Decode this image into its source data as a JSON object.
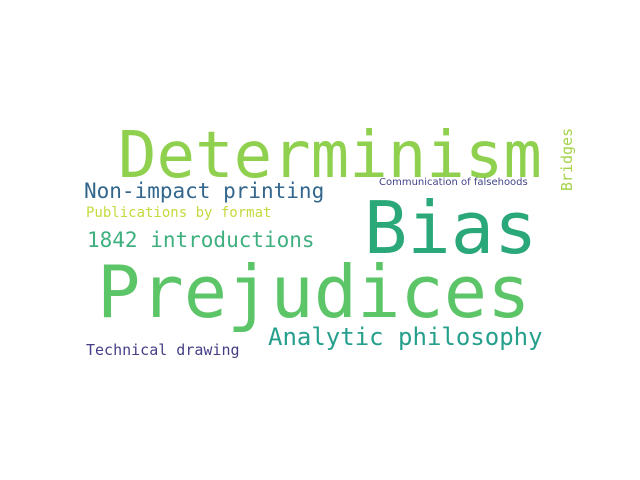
{
  "words": {
    "determinism": {
      "text": "Determinism",
      "color": "#8fd14f"
    },
    "bias": {
      "text": "Bias",
      "color": "#2ba87a"
    },
    "prejudices": {
      "text": "Prejudices",
      "color": "#5cc568"
    },
    "non_impact_printing": {
      "text": "Non-impact printing",
      "color": "#33668c"
    },
    "introductions_1842": {
      "text": "1842 introductions",
      "color": "#3eaf7e"
    },
    "analytic_philosophy": {
      "text": "Analytic philosophy",
      "color": "#26a08c"
    },
    "publications_by_format": {
      "text": "Publications by format",
      "color": "#c6d93e"
    },
    "technical_drawing": {
      "text": "Technical drawing",
      "color": "#443e86"
    },
    "communication_of_falsehoods": {
      "text": "Communication of falsehoods",
      "color": "#414487"
    },
    "bridges": {
      "text": "Bridges",
      "color": "#a4d34a"
    }
  }
}
